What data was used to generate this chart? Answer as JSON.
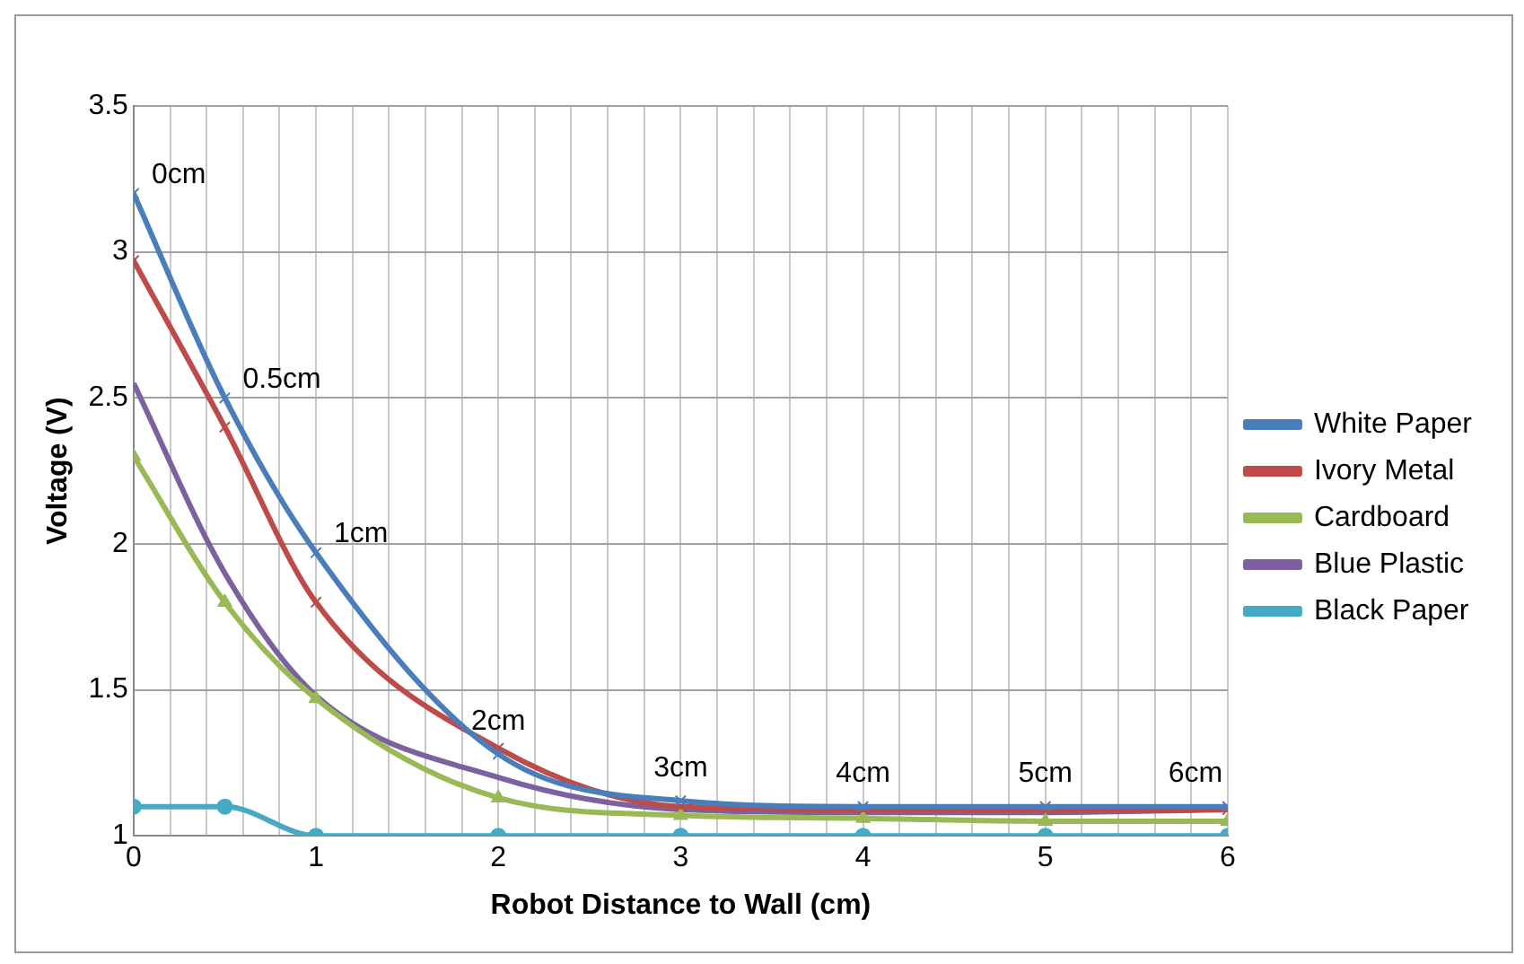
{
  "chart_data": {
    "type": "line",
    "xlabel": "Robot Distance to Wall (cm)",
    "ylabel": "Voltage (V)",
    "x": [
      0,
      0.5,
      1,
      2,
      3,
      4,
      5,
      6
    ],
    "series": [
      {
        "name": "White Paper",
        "color": "#4a7ebb",
        "marker": "cross",
        "values": [
          3.2,
          2.5,
          1.97,
          1.28,
          1.12,
          1.1,
          1.1,
          1.1
        ]
      },
      {
        "name": "Ivory Metal",
        "color": "#be4b48",
        "marker": "cross",
        "values": [
          2.97,
          2.4,
          1.8,
          1.3,
          1.1,
          1.09,
          1.09,
          1.09
        ]
      },
      {
        "name": "Cardboard",
        "color": "#98b954",
        "marker": "triangle",
        "values": [
          2.3,
          1.8,
          1.47,
          1.13,
          1.07,
          1.06,
          1.05,
          1.05
        ]
      },
      {
        "name": "Blue Plastic",
        "color": "#7d60a0",
        "marker": "none",
        "values": [
          2.55,
          1.9,
          1.48,
          1.2,
          1.09,
          1.08,
          1.08,
          1.09
        ]
      },
      {
        "name": "Black Paper",
        "color": "#46aac5",
        "marker": "circle",
        "values": [
          1.1,
          1.1,
          1.0,
          1.0,
          1.0,
          1.0,
          1.0,
          1.0
        ]
      }
    ],
    "annotations": [
      {
        "text": "0cm",
        "x": 0,
        "y": 3.2
      },
      {
        "text": "0.5cm",
        "x": 0.5,
        "y": 2.5
      },
      {
        "text": "1cm",
        "x": 1,
        "y": 1.97
      },
      {
        "text": "2cm",
        "x": 2,
        "y": 1.28
      },
      {
        "text": "3cm",
        "x": 3,
        "y": 1.12
      },
      {
        "text": "4cm",
        "x": 4,
        "y": 1.1
      },
      {
        "text": "5cm",
        "x": 5,
        "y": 1.1
      },
      {
        "text": "6cm",
        "x": 6,
        "y": 1.1
      }
    ],
    "xlim": [
      0,
      6
    ],
    "xticks": [
      0,
      {
        "value": 0.2,
        "label": null
      },
      {
        "value": 0.4,
        "label": null
      },
      {
        "value": 0.6,
        "label": null
      },
      {
        "value": 0.8,
        "label": null
      },
      1,
      {
        "value": 1.2,
        "label": null
      },
      {
        "value": 1.4,
        "label": null
      },
      {
        "value": 1.6,
        "label": null
      },
      {
        "value": 1.8,
        "label": null
      },
      2,
      {
        "value": 2.2,
        "label": null
      },
      {
        "value": 2.4,
        "label": null
      },
      {
        "value": 2.6,
        "label": null
      },
      {
        "value": 2.8,
        "label": null
      },
      3,
      {
        "value": 3.2,
        "label": null
      },
      {
        "value": 3.4,
        "label": null
      },
      {
        "value": 3.6,
        "label": null
      },
      {
        "value": 3.8,
        "label": null
      },
      4,
      {
        "value": 4.2,
        "label": null
      },
      {
        "value": 4.4,
        "label": null
      },
      {
        "value": 4.6,
        "label": null
      },
      {
        "value": 4.8,
        "label": null
      },
      5,
      {
        "value": 5.2,
        "label": null
      },
      {
        "value": 5.4,
        "label": null
      },
      {
        "value": 5.6,
        "label": null
      },
      {
        "value": 5.8,
        "label": null
      },
      6
    ],
    "ylim": [
      1,
      3.5
    ],
    "yticks": [
      1,
      1.5,
      2,
      2.5,
      3,
      3.5
    ],
    "grid": true,
    "legend": "right",
    "line_style": "solid"
  }
}
